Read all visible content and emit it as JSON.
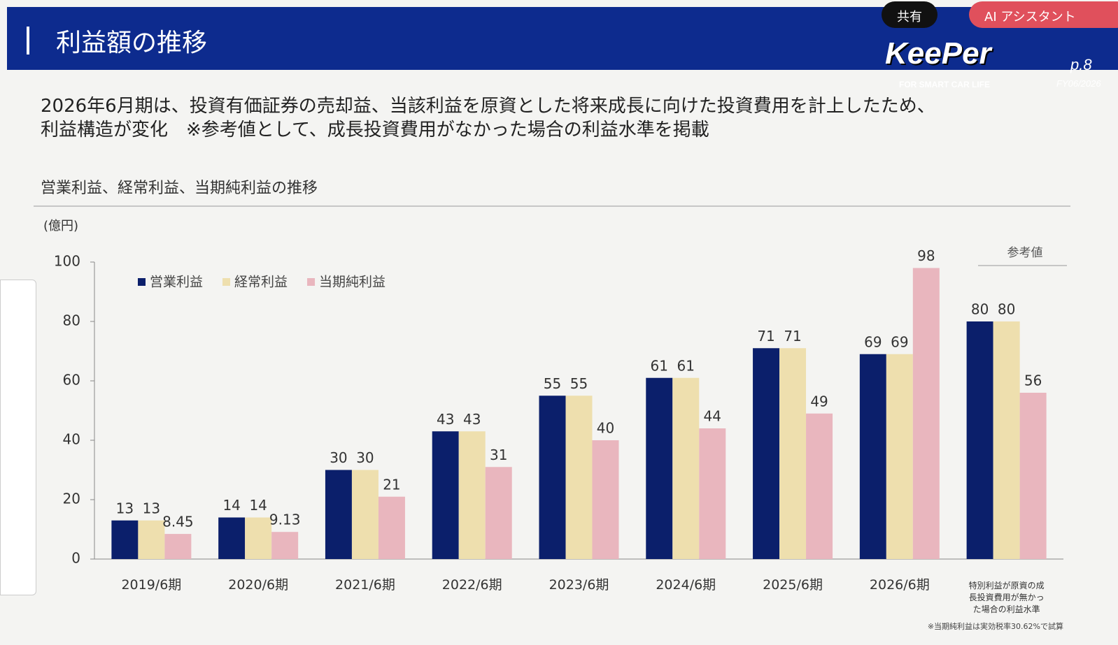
{
  "slide": {
    "title": "利益額の推移",
    "logo": "KeePer",
    "tagline": "FOR SMART CAR LIFE",
    "page": "p.8",
    "fiscal": "FY06/2026",
    "share_button": "共有",
    "ai_button": "AI アシスタント",
    "description": [
      "2026年6月期は、投資有価証券の売却益、当該利益を原資とした将来成長に向けた投資費用を計上したため、",
      "利益構造が変化　※参考値として、成長投資費用がなかった場合の利益水準を掲載"
    ]
  },
  "chart_data": {
    "type": "bar",
    "title": "営業利益、経常利益、当期純利益の推移",
    "y_label": "(億円)",
    "categories": [
      "2019/6期",
      "2020/6期",
      "2021/6期",
      "2022/6期",
      "2023/6期",
      "2024/6期",
      "2025/6期",
      "2026/6期",
      "特別利益が原資の成長投資費用が無かった場合の利益水準"
    ],
    "series": [
      {
        "name": "営業利益",
        "color": "#0b1f6b",
        "values": [
          13,
          14,
          30,
          43,
          55,
          61,
          71,
          69,
          80
        ]
      },
      {
        "name": "経常利益",
        "color": "#eedfae",
        "values": [
          13,
          14,
          30,
          43,
          55,
          61,
          71,
          69,
          80
        ]
      },
      {
        "name": "当期純利益",
        "color": "#e9b6be",
        "values": [
          8.45,
          9.13,
          21,
          31,
          40,
          44,
          49,
          98,
          56
        ]
      }
    ],
    "ylim": [
      0,
      100
    ],
    "yticks": [
      0,
      20,
      40,
      60,
      80,
      100
    ],
    "grid": false,
    "legend": "top-left",
    "annotation": "参考値",
    "note": "※当期純利益は実効税率30.62%で試算"
  }
}
